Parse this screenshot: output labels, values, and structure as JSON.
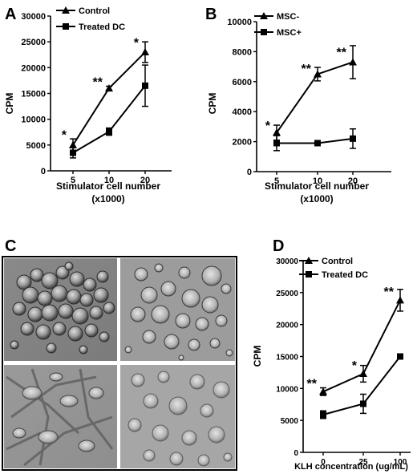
{
  "panel_letters": {
    "a": "A",
    "b": "B",
    "c": "C",
    "d": "D"
  },
  "chart_data": [
    {
      "id": "A",
      "type": "line",
      "categories": [
        "5",
        "10",
        "20"
      ],
      "xlabel": "Stimulator cell number",
      "xlabel2": "(x1000)",
      "ylabel": "CPM",
      "ylim": [
        0,
        30000
      ],
      "yticks": [
        0,
        5000,
        10000,
        15000,
        20000,
        25000,
        30000
      ],
      "legend_position": "top-left",
      "series": [
        {
          "name": "Control",
          "marker": "triangle",
          "values": [
            5000,
            16000,
            23000
          ],
          "errors": [
            1200,
            400,
            2000
          ]
        },
        {
          "name": "Treated DC",
          "marker": "square",
          "values": [
            3500,
            7600,
            16500
          ],
          "errors": [
            1000,
            700,
            4000
          ]
        }
      ],
      "annotations": [
        {
          "text": "*",
          "x": "5",
          "y": 6800
        },
        {
          "text": "**",
          "x": "10",
          "y": 17000
        },
        {
          "text": "*",
          "x": "20",
          "y": 24600
        }
      ]
    },
    {
      "id": "B",
      "type": "line",
      "categories": [
        "5",
        "10",
        "20"
      ],
      "xlabel": "Stimulator cell number",
      "xlabel2": "(x1000)",
      "ylabel": "CPM",
      "ylim": [
        0,
        10000
      ],
      "yticks": [
        0,
        2000,
        4000,
        6000,
        8000,
        10000
      ],
      "legend_position": "top-left",
      "series": [
        {
          "name": "MSC-",
          "marker": "triangle",
          "values": [
            2600,
            6500,
            7300
          ],
          "errors": [
            500,
            450,
            1100
          ]
        },
        {
          "name": "MSC+",
          "marker": "square",
          "values": [
            1900,
            1900,
            2200
          ],
          "errors": [
            500,
            100,
            650
          ]
        }
      ],
      "annotations": [
        {
          "text": "*",
          "x": "5",
          "y": 3000
        },
        {
          "text": "**",
          "x": "10",
          "y": 6800
        },
        {
          "text": "**",
          "x": "20",
          "y": 7900
        }
      ]
    },
    {
      "id": "D",
      "type": "line",
      "categories": [
        "0",
        "25",
        "100"
      ],
      "xlabel": "KLH concentration (ug/mL)",
      "ylabel": "CPM",
      "ylim": [
        0,
        30000
      ],
      "yticks": [
        0,
        5000,
        10000,
        15000,
        20000,
        25000,
        30000
      ],
      "legend_position": "top-left",
      "series": [
        {
          "name": "Control",
          "marker": "triangle",
          "values": [
            9500,
            12300,
            23800
          ],
          "errors": [
            600,
            1300,
            1700
          ]
        },
        {
          "name": "Treated DC",
          "marker": "square",
          "values": [
            5900,
            7600,
            15000
          ],
          "errors": [
            600,
            1500,
            300
          ]
        }
      ],
      "annotations": [
        {
          "text": "**",
          "x": "0",
          "y": 10600
        },
        {
          "text": "*",
          "x": "25",
          "y": 13400
        },
        {
          "text": "**",
          "x": "100",
          "y": 25000
        }
      ]
    }
  ],
  "micrograph": {
    "tiles": [
      "micrograph-top-left",
      "micrograph-top-right",
      "micrograph-bottom-left",
      "micrograph-bottom-right"
    ]
  }
}
